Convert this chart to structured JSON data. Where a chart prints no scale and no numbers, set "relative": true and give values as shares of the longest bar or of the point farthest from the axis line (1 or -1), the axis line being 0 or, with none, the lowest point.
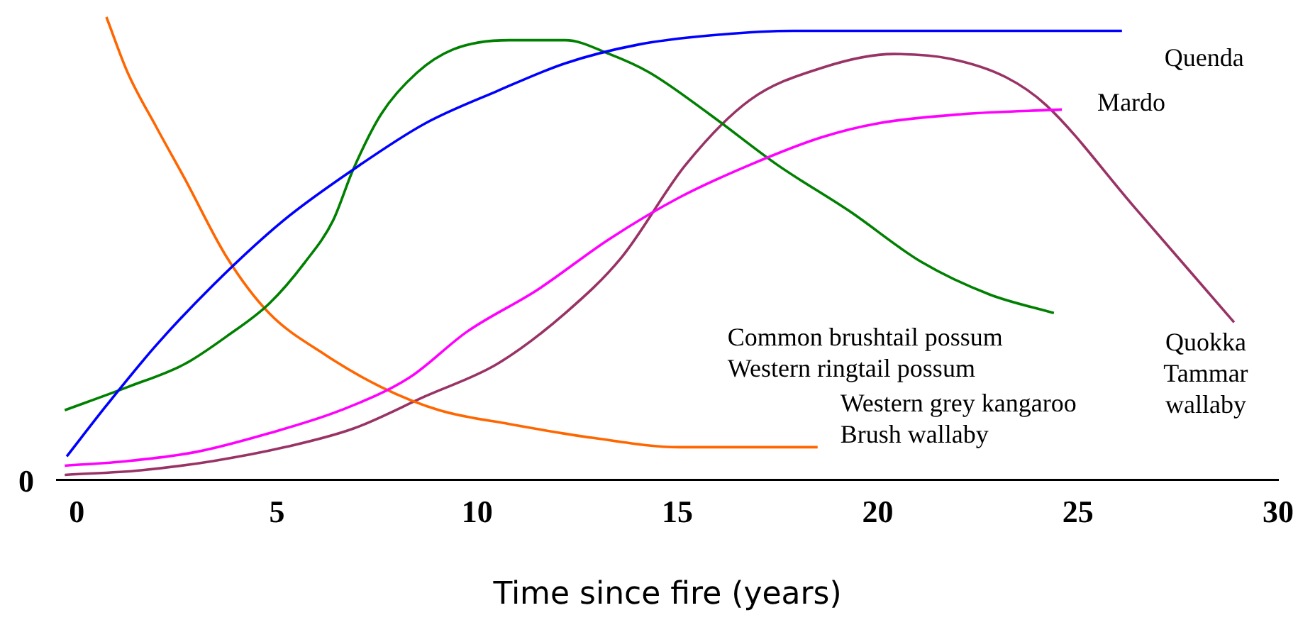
{
  "chart_data": {
    "type": "line",
    "relative": true,
    "xlabel": "Time since fire (years)",
    "xlim": [
      -0.5,
      30
    ],
    "xticks": [
      0,
      5,
      10,
      15,
      20,
      25,
      30
    ],
    "grid": false,
    "legend": false,
    "marker": "none",
    "line_style": "solid",
    "annotations": [
      "0"
    ],
    "series": [
      {
        "name": "Quenda",
        "color": "#0000ff",
        "x": [
          -0.25,
          0.74,
          1.98,
          3.4,
          5.16,
          6.9,
          8.7,
          10.5,
          12.2,
          14,
          15.8,
          17.9,
          20,
          22.8,
          26.1
        ],
        "values": [
          0.05,
          0.16,
          0.29,
          0.42,
          0.56,
          0.67,
          0.77,
          0.84,
          0.9,
          0.94,
          0.96,
          0.97,
          0.97,
          0.97,
          0.97
        ]
      },
      {
        "name": "Mardo",
        "color": "#ff00ff",
        "x": [
          -0.3,
          1.27,
          3,
          4.8,
          6.6,
          8.3,
          9.75,
          11.5,
          13.3,
          15.05,
          16.8,
          18.6,
          20,
          22.1,
          24.6
        ],
        "values": [
          0.03,
          0.04,
          0.06,
          0.1,
          0.15,
          0.22,
          0.32,
          0.41,
          0.52,
          0.61,
          0.68,
          0.74,
          0.77,
          0.79,
          0.8
        ]
      },
      {
        "name": "Common brushtail possum\nWestern ringtail possum",
        "color": "#008000",
        "x": [
          -0.3,
          1.27,
          2.7,
          3.75,
          4.8,
          5.7,
          6.4,
          6.9,
          7.6,
          8.5,
          9.4,
          10.8,
          12.2,
          13.3,
          14.3,
          15.8,
          17.5,
          19.3,
          21.1,
          22.8,
          24.4
        ],
        "values": [
          0.15,
          0.2,
          0.25,
          0.31,
          0.38,
          0.47,
          0.56,
          0.67,
          0.79,
          0.88,
          0.93,
          0.95,
          0.95,
          0.92,
          0.88,
          0.79,
          0.68,
          0.58,
          0.47,
          0.4,
          0.36
        ]
      },
      {
        "name": "Western grey kangaroo\nBrush wallaby",
        "color": "#ff6600",
        "x": [
          0.74,
          1.27,
          2,
          2.7,
          3.75,
          4.8,
          6.2,
          7.6,
          9.05,
          10.8,
          12.9,
          15.05,
          16.8,
          18.5
        ],
        "values": [
          1,
          0.88,
          0.76,
          0.65,
          0.48,
          0.36,
          0.27,
          0.2,
          0.15,
          0.12,
          0.09,
          0.07,
          0.07,
          0.07
        ]
      },
      {
        "name": "Quokka\nTammar\nwallaby",
        "color": "#993366",
        "x": [
          -0.3,
          1.6,
          3.4,
          5.2,
          6.9,
          8.7,
          10.5,
          12.2,
          13.6,
          15.2,
          16.8,
          18.6,
          20.4,
          21.8,
          23.2,
          24.2,
          26.4,
          28.9
        ],
        "values": [
          0.01,
          0.02,
          0.04,
          0.07,
          0.11,
          0.18,
          0.25,
          0.36,
          0.48,
          0.68,
          0.82,
          0.89,
          0.92,
          0.91,
          0.87,
          0.81,
          0.59,
          0.34
        ]
      }
    ]
  }
}
